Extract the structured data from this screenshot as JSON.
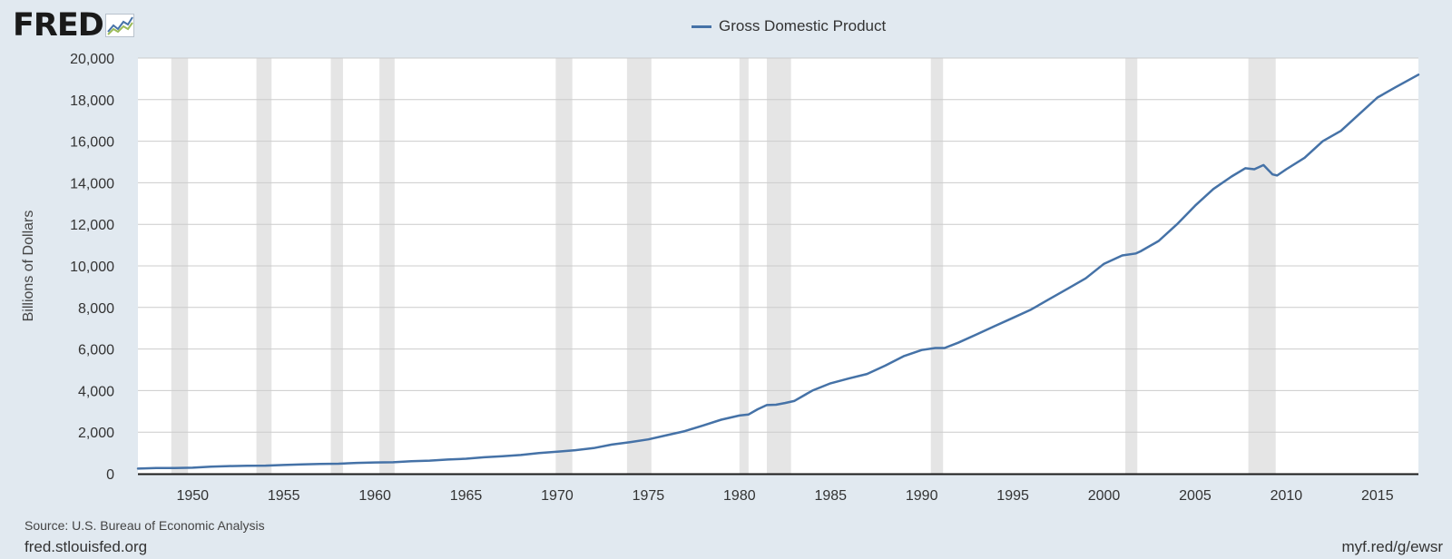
{
  "header": {
    "logo_text": "FRED",
    "logo_icon": "line-graph-icon"
  },
  "chart_data": {
    "type": "line",
    "title": "",
    "legend": "Gross Domestic Product",
    "legend_position": "top-center",
    "ylabel": "Billions of Dollars",
    "xlabel": "",
    "xlim": [
      1947,
      2017.25
    ],
    "ylim": [
      0,
      20000
    ],
    "grid": true,
    "x_ticks": [
      "1950",
      "1955",
      "1960",
      "1965",
      "1970",
      "1975",
      "1980",
      "1985",
      "1990",
      "1995",
      "2000",
      "2005",
      "2010",
      "2015"
    ],
    "y_ticks": [
      "0",
      "2,000",
      "4,000",
      "6,000",
      "8,000",
      "10,000",
      "12,000",
      "14,000",
      "16,000",
      "18,000",
      "20,000"
    ],
    "series": [
      {
        "name": "Gross Domestic Product",
        "color": "#4572a7",
        "x": [
          1947.0,
          1948.0,
          1949.0,
          1950.0,
          1951.0,
          1952.0,
          1953.0,
          1954.0,
          1955.0,
          1956.0,
          1957.0,
          1958.0,
          1959.0,
          1960.0,
          1961.0,
          1962.0,
          1963.0,
          1964.0,
          1965.0,
          1966.0,
          1967.0,
          1968.0,
          1969.0,
          1970.0,
          1971.0,
          1972.0,
          1973.0,
          1974.0,
          1975.0,
          1976.0,
          1977.0,
          1978.0,
          1979.0,
          1980.0,
          1980.5,
          1981.0,
          1981.5,
          1982.0,
          1982.5,
          1983.0,
          1984.0,
          1985.0,
          1986.0,
          1987.0,
          1988.0,
          1989.0,
          1990.0,
          1990.75,
          1991.25,
          1992.0,
          1993.0,
          1994.0,
          1995.0,
          1996.0,
          1997.0,
          1998.0,
          1999.0,
          2000.0,
          2001.0,
          2001.75,
          2002.0,
          2003.0,
          2004.0,
          2005.0,
          2006.0,
          2007.0,
          2007.75,
          2008.25,
          2008.75,
          2009.25,
          2009.5,
          2010.0,
          2011.0,
          2012.0,
          2013.0,
          2014.0,
          2015.0,
          2016.0,
          2017.25
        ],
        "values": [
          243,
          270,
          270,
          290,
          340,
          365,
          385,
          390,
          420,
          450,
          470,
          480,
          520,
          540,
          550,
          600,
          630,
          680,
          720,
          790,
          840,
          900,
          990,
          1060,
          1130,
          1230,
          1400,
          1520,
          1650,
          1850,
          2050,
          2320,
          2600,
          2800,
          2850,
          3100,
          3300,
          3320,
          3400,
          3500,
          4000,
          4350,
          4580,
          4800,
          5200,
          5650,
          5950,
          6050,
          6050,
          6300,
          6700,
          7100,
          7500,
          7900,
          8400,
          8900,
          9400,
          10100,
          10500,
          10600,
          10700,
          11200,
          12000,
          12900,
          13700,
          14300,
          14700,
          14650,
          14850,
          14400,
          14350,
          14650,
          15200,
          16000,
          16500,
          17300,
          18100,
          18600,
          19200
        ]
      }
    ],
    "recessions": [
      [
        1948.83,
        1949.75
      ],
      [
        1953.5,
        1954.33
      ],
      [
        1957.58,
        1958.25
      ],
      [
        1960.25,
        1961.08
      ],
      [
        1969.92,
        1970.83
      ],
      [
        1973.83,
        1975.17
      ],
      [
        1980.0,
        1980.5
      ],
      [
        1981.5,
        1982.83
      ],
      [
        1990.5,
        1991.17
      ],
      [
        2001.17,
        2001.83
      ],
      [
        2007.92,
        2009.42
      ]
    ]
  },
  "footer": {
    "source": "Source: U.S. Bureau of Economic Analysis",
    "site": "fred.stlouisfed.org",
    "short_link": "myf.red/g/ewsr"
  }
}
